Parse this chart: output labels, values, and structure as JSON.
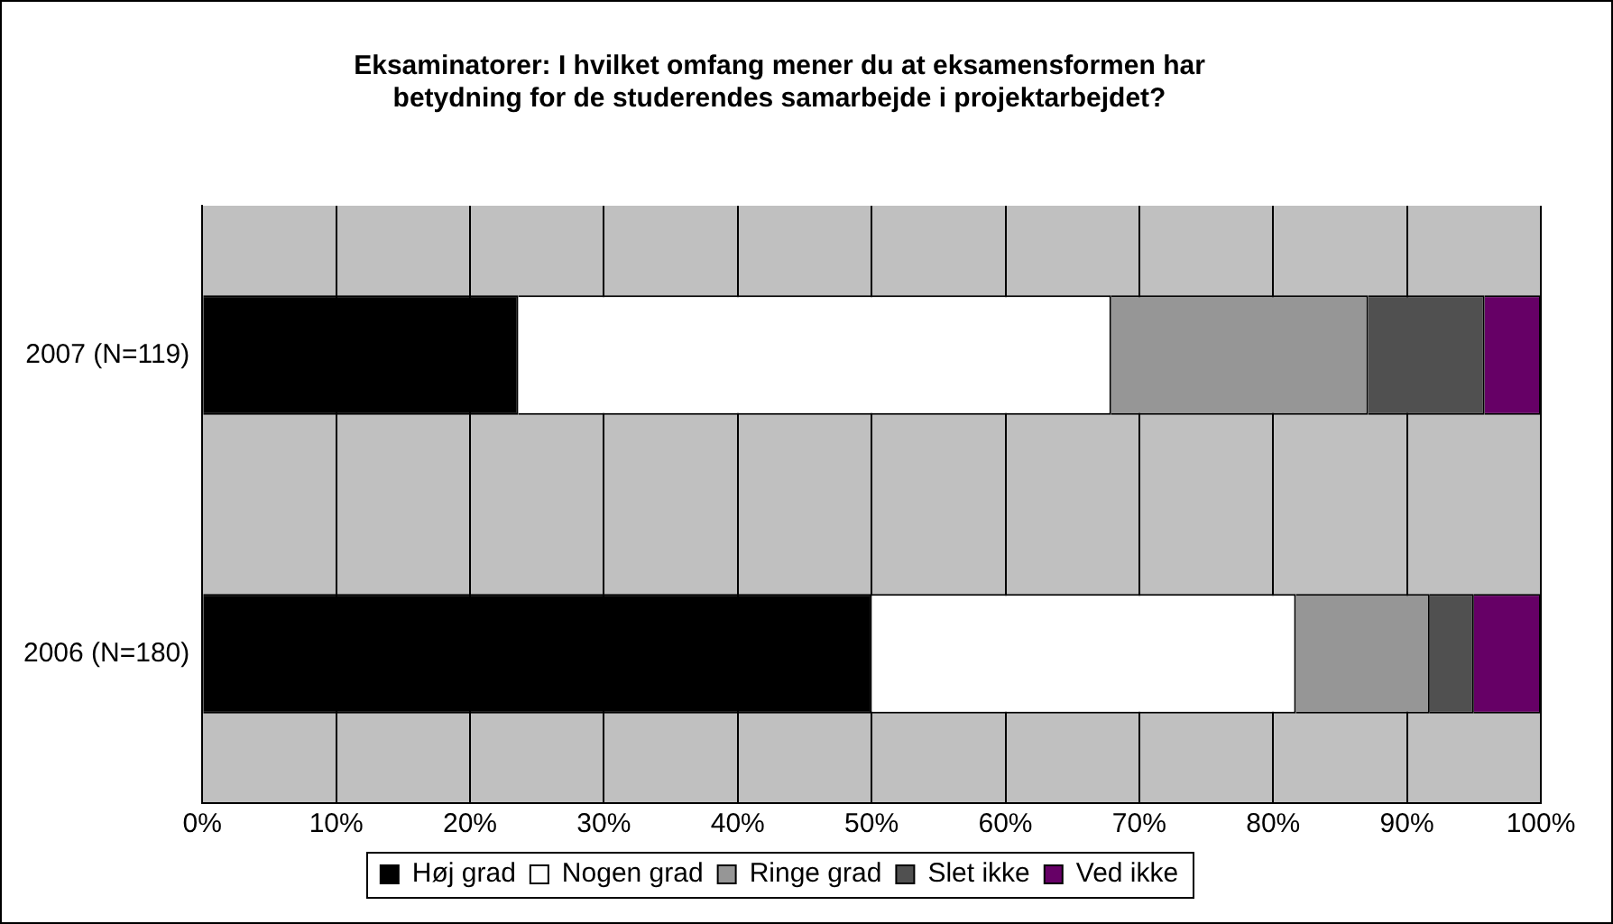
{
  "chart_data": {
    "type": "bar",
    "orientation": "horizontal",
    "stacked": true,
    "title": [
      "Eksaminatorer: I hvilket omfang mener du at eksamensformen har",
      "betydning for de studerendes samarbejde i projektarbejdet?"
    ],
    "categories": [
      "2007 (N=119)",
      "2006 (N=180)"
    ],
    "series": [
      {
        "name": "Høj grad",
        "color": "#000000",
        "values": [
          23.6,
          50
        ]
      },
      {
        "name": "Nogen grad",
        "color": "#ffffff",
        "values": [
          44.3,
          31.7
        ]
      },
      {
        "name": "Ringe grad",
        "color": "#969696",
        "values": [
          19.2,
          10
        ]
      },
      {
        "name": "Slet ikke",
        "color": "#505050",
        "values": [
          8.7,
          3.3
        ]
      },
      {
        "name": "Ved ikke",
        "color": "#660066",
        "values": [
          4.2,
          5
        ]
      }
    ],
    "xlim": [
      0,
      100
    ],
    "xticks": [
      {
        "value": 0,
        "label": "0%"
      },
      {
        "value": 10,
        "label": "10%"
      },
      {
        "value": 20,
        "label": "20%"
      },
      {
        "value": 30,
        "label": "30%"
      },
      {
        "value": 40,
        "label": "40%"
      },
      {
        "value": 50,
        "label": "50%"
      },
      {
        "value": 60,
        "label": "60%"
      },
      {
        "value": 70,
        "label": "70%"
      },
      {
        "value": 80,
        "label": "80%"
      },
      {
        "value": 90,
        "label": "90%"
      },
      {
        "value": 100,
        "label": "100%"
      }
    ],
    "grid": "x",
    "legend": "bottom"
  }
}
